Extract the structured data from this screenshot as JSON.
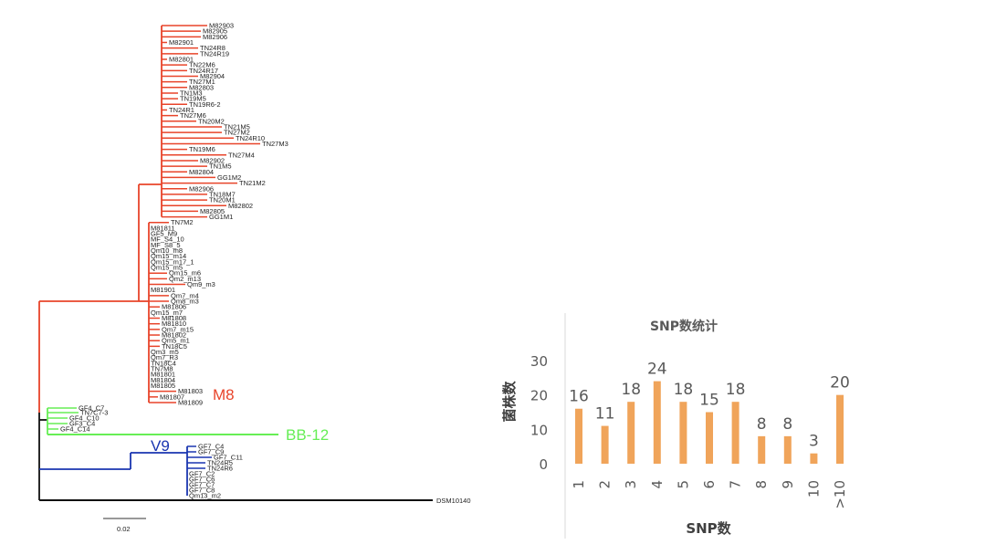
{
  "tree": {
    "clades": [
      {
        "name": "M8",
        "color": "#e8442a"
      },
      {
        "name": "BB-12",
        "color": "#66ee55"
      },
      {
        "name": "V9",
        "color": "#1a35b0"
      }
    ],
    "outgroup": "DSM10140",
    "scale_bar": "0.02",
    "m8_leaves": [
      "M82903",
      "M82905",
      "M82906",
      "M82901",
      "TN24R8",
      "TN24R19",
      "M82801",
      "TN22M6",
      "TN24R17",
      "M82904",
      "TN27M1",
      "M82803",
      "TN1M3",
      "TN19M5",
      "TN19R6-2",
      "TN24R1",
      "TN27M6",
      "TN20M2",
      "TN21M5",
      "TN27M2",
      "TN24R10",
      "TN27M3",
      "TN19M6",
      "TN27M4",
      "M82902",
      "TN1M5",
      "M82804",
      "GG1M2",
      "TN21M2",
      "M82906",
      "TN18M7",
      "TN20M1",
      "M82802",
      "M82805",
      "GG1M1",
      "TN7M2",
      "M81811",
      "GF5_M9",
      "MF_S4_10",
      "MF_S8_5",
      "Qm10_m8",
      "Qm15_m14",
      "Qm15_m17_1",
      "Qm15_m5",
      "Qm15_m6",
      "Qm2_m13",
      "Qm9_m3",
      "M81901",
      "Qm7_m4",
      "Qm8_m3",
      "M81806",
      "Qm15_m7",
      "M81808",
      "M81810",
      "Qm7_m15",
      "M81802",
      "Qm5_m1",
      "TN18C5",
      "Qm3_m5",
      "Qm7_R3",
      "TN18C4",
      "TN7M8",
      "M81801",
      "M81804",
      "M81805",
      "M81803",
      "M81807",
      "M81809"
    ],
    "bb12_leaves": [
      "GF4_C7",
      "TN7C7-3",
      "GF4_C10",
      "GF3_C4",
      "GF4_C14"
    ],
    "v9_leaves": [
      "GF7_C4",
      "GF7_C9",
      "GF7_C11",
      "TN24R5",
      "TN24R6",
      "GF7_C2",
      "GF7_C6",
      "GF7_C7",
      "GF7_C8",
      "Qm13_m2"
    ]
  },
  "chart_data": {
    "type": "bar",
    "title": "SNP数统计",
    "xlabel": "SNP数",
    "ylabel": "菌株数",
    "categories": [
      "1",
      "2",
      "3",
      "4",
      "5",
      "6",
      "7",
      "8",
      "9",
      "10",
      ">10"
    ],
    "values": [
      16,
      11,
      18,
      24,
      18,
      15,
      18,
      8,
      8,
      3,
      20
    ],
    "ylim": [
      0,
      30
    ],
    "yticks": [
      0,
      10,
      20,
      30
    ],
    "bar_color": "#f0a45a",
    "grid": false
  }
}
